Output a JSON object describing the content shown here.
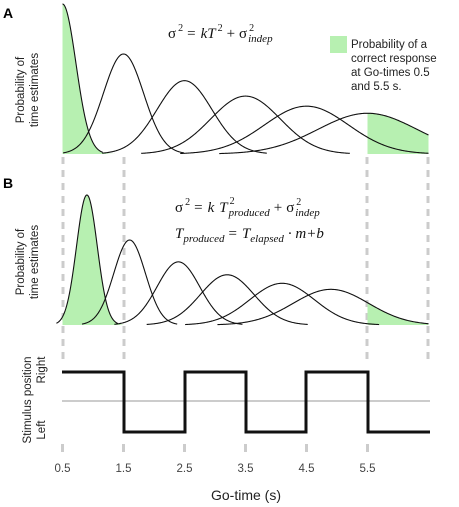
{
  "panels": {
    "a": {
      "letter": "A",
      "ylabel": [
        "Probability of",
        "time estimates"
      ],
      "equation": {
        "sigma": "σ",
        "sq": "2",
        "eq": "=",
        "k": "kT",
        "plus": "+",
        "indep": "indep"
      },
      "legend": {
        "color": "#b7f0b1",
        "lines": [
          "Probability of a",
          "correct response",
          "at Go-times 0.5",
          "and 5.5 s."
        ]
      }
    },
    "b": {
      "letter": "B",
      "ylabel": [
        "Probability of",
        "time estimates"
      ],
      "equation1": {
        "sigma": "σ",
        "sq": "2",
        "eq": "=",
        "k": "k",
        "T": "T",
        "produced": "produced",
        "plus": "+",
        "indep": "indep"
      },
      "equation2": {
        "T": "T",
        "produced": "produced",
        "eq": "=",
        "elapsed": "elapsed",
        "rest": "· m+b"
      }
    },
    "c": {
      "ylabel": "Stimulus position",
      "right_label": "Right",
      "left_label": "Left"
    }
  },
  "x_axis": {
    "label": "Go-time (s)",
    "ticks": [
      "0.5",
      "1.5",
      "2.5",
      "3.5",
      "4.5",
      "5.5"
    ]
  },
  "colors": {
    "fill": "#b7f0b1",
    "curve": "#111111",
    "dash": "#cccccc",
    "midline": "#cccccc"
  }
}
